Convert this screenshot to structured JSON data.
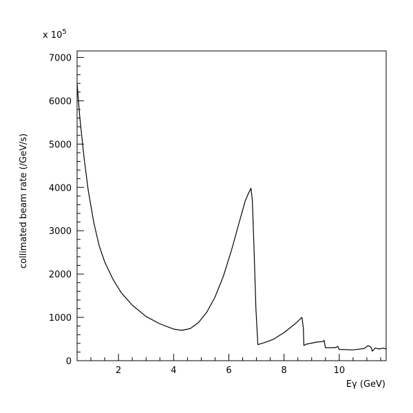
{
  "chart_data": {
    "type": "line",
    "title": "",
    "xlabel": "Eγ (GeV)",
    "ylabel": "collimated beam rate (/GeV/s)",
    "multiplier": "x 10",
    "multiplier_exp": "5",
    "xlim": [
      0.5,
      11.7
    ],
    "ylim": [
      0,
      7150
    ],
    "x_ticks": [
      2,
      4,
      6,
      8,
      10
    ],
    "x_tick_labels": [
      "2",
      "4",
      "6",
      "8",
      "10"
    ],
    "y_ticks": [
      0,
      1000,
      2000,
      3000,
      4000,
      5000,
      6000,
      7000
    ],
    "y_tick_labels": [
      "0",
      "1000",
      "2000",
      "3000",
      "4000",
      "5000",
      "6000",
      "7000"
    ],
    "grid": false,
    "legend": "none",
    "series": [
      {
        "color": "#000000",
        "x": [
          0.5,
          0.6,
          0.75,
          0.9,
          1.1,
          1.3,
          1.5,
          1.8,
          2.1,
          2.5,
          3.0,
          3.5,
          4.0,
          4.3,
          4.6,
          4.9,
          5.2,
          5.5,
          5.8,
          6.1,
          6.4,
          6.6,
          6.7,
          6.8,
          6.85,
          6.9,
          6.98,
          7.05,
          7.3,
          7.6,
          8.0,
          8.4,
          8.65,
          8.7,
          8.72,
          8.8,
          9.2,
          9.4,
          9.45,
          9.5,
          9.8,
          9.9,
          9.95,
          10.0,
          10.5,
          10.9,
          11.05,
          11.15,
          11.2,
          11.3,
          11.45,
          11.6,
          11.7
        ],
        "y": [
          6400,
          5600,
          4700,
          3950,
          3200,
          2650,
          2280,
          1880,
          1570,
          1280,
          1020,
          850,
          730,
          700,
          740,
          880,
          1120,
          1470,
          1950,
          2560,
          3250,
          3700,
          3850,
          3980,
          3700,
          2800,
          1200,
          370,
          420,
          490,
          650,
          850,
          1000,
          750,
          350,
          380,
          430,
          440,
          470,
          300,
          300,
          310,
          330,
          260,
          250,
          280,
          350,
          310,
          220,
          290,
          270,
          290,
          270
        ]
      }
    ]
  }
}
